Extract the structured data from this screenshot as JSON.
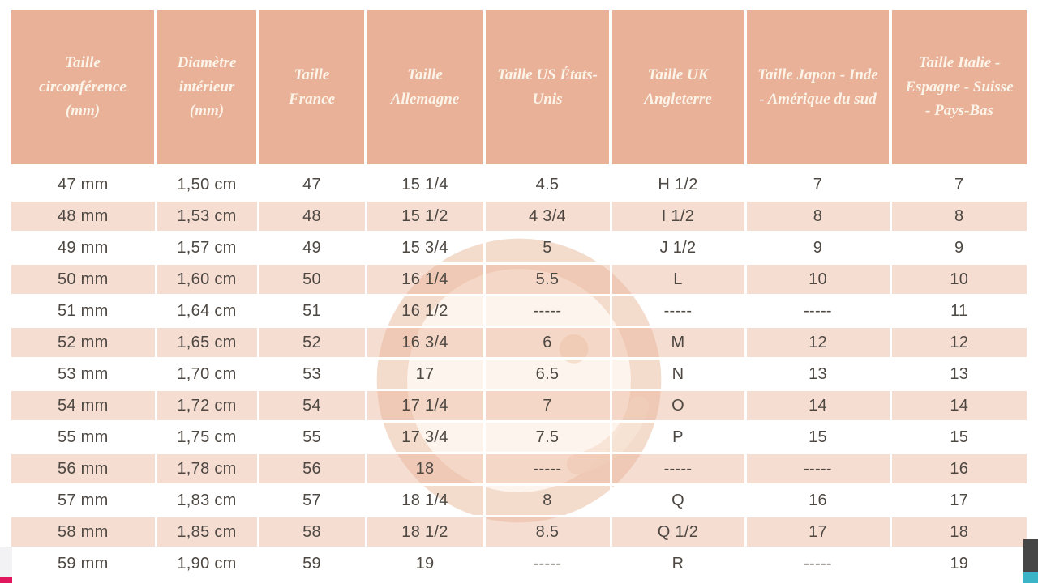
{
  "chart_data": {
    "type": "table",
    "columns": [
      "Taille circonférence (mm)",
      "Diamètre intérieur (mm)",
      "Taille France",
      "Taille Allemagne",
      "Taille US États-Unis",
      "Taille UK Angleterre",
      "Taille Japon - Inde - Amérique du sud",
      "Taille Italie - Espagne - Suisse - Pays-Bas"
    ],
    "rows": [
      [
        "47 mm",
        "1,50 cm",
        "47",
        "15 1/4",
        "4.5",
        "H 1/2",
        "7",
        "7"
      ],
      [
        "48 mm",
        "1,53 cm",
        "48",
        "15 1/2",
        "4 3/4",
        "I 1/2",
        "8",
        "8"
      ],
      [
        "49 mm",
        "1,57 cm",
        "49",
        "15 3/4",
        "5",
        "J 1/2",
        "9",
        "9"
      ],
      [
        "50 mm",
        "1,60 cm",
        "50",
        "16 1/4",
        "5.5",
        "L",
        "10",
        "10"
      ],
      [
        "51 mm",
        "1,64 cm",
        "51",
        "16 1/2",
        "-----",
        "-----",
        "-----",
        "11"
      ],
      [
        "52 mm",
        "1,65 cm",
        "52",
        "16 3/4",
        "6",
        "M",
        "12",
        "12"
      ],
      [
        "53 mm",
        "1,70 cm",
        "53",
        "17",
        "6.5",
        "N",
        "13",
        "13"
      ],
      [
        "54 mm",
        "1,72 cm",
        "54",
        "17 1/4",
        "7",
        "O",
        "14",
        "14"
      ],
      [
        "55 mm",
        "1,75 cm",
        "55",
        "17 3/4",
        "7.5",
        "P",
        "15",
        "15"
      ],
      [
        "56 mm",
        "1,78 cm",
        "56",
        "18",
        "-----",
        "-----",
        "-----",
        "16"
      ],
      [
        "57 mm",
        "1,83 cm",
        "57",
        "18 1/4",
        "8",
        "Q",
        "16",
        "17"
      ],
      [
        "58 mm",
        "1,85 cm",
        "58",
        "18 1/2",
        "8.5",
        "Q 1/2",
        "17",
        "18"
      ],
      [
        "59 mm",
        "1,90 cm",
        "59",
        "19",
        "-----",
        "R",
        "-----",
        "19"
      ]
    ],
    "layout": {
      "stripe_pattern": "even data rows shaded",
      "grid": "white separators",
      "header_rotation": "none"
    }
  },
  "watermark": {
    "icon": "g-ring-logo-watermark"
  },
  "colors": {
    "header_bg": "#e8b198",
    "header_text": "#fcf4e8",
    "row_stripe": "#f6ded0",
    "row_plain": "#ffffff",
    "cell_text": "#4e4843",
    "watermark_ring": "#f4dccc",
    "watermark_disc": "#fdf2ea",
    "edge_pink": "#e0175c",
    "edge_gray": "#f2f1f3",
    "edge_dark": "#464646",
    "edge_teal": "#3cb4c7"
  }
}
